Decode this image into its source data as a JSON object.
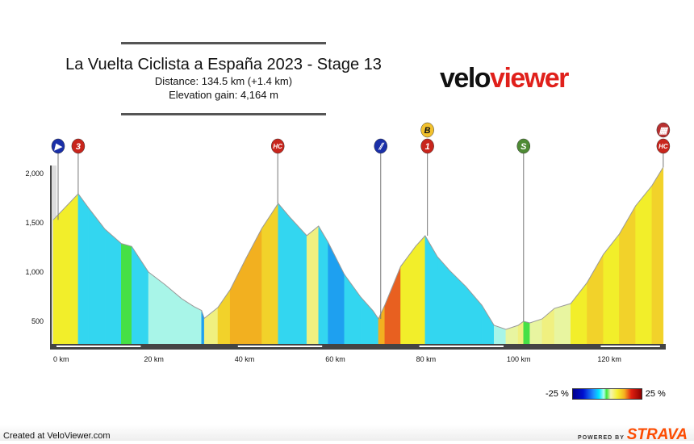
{
  "header": {
    "title": "La Vuelta Ciclista a España 2023 - Stage 13",
    "distance": "Distance: 134.5 km (+1.4 km)",
    "elevation_gain": "Elevation gain: 4,164 m"
  },
  "logo": {
    "part1": "velo",
    "part2": "viewer"
  },
  "footer": {
    "created": "Created at VeloViewer.com",
    "powered": "POWERED BY",
    "strava": "STRAVA"
  },
  "legend": {
    "min": "-25 %",
    "max": "25 %"
  },
  "chart_data": {
    "type": "area",
    "xlabel": "",
    "ylabel": "",
    "xlim": [
      0,
      134.5
    ],
    "ylim": [
      235,
      2100
    ],
    "x_ticks": [
      "0 km",
      "20 km",
      "40 km",
      "60 km",
      "80 km",
      "100 km",
      "120 km"
    ],
    "y_ticks": [
      "2,000",
      "1,500",
      "1,000",
      "500"
    ],
    "x_tick_values": [
      0,
      20,
      40,
      60,
      80,
      100,
      120
    ],
    "y_tick_values": [
      2000,
      1500,
      1000,
      500
    ],
    "points": [
      [
        0,
        1530
      ],
      [
        5.5,
        1795
      ],
      [
        7.8,
        1650
      ],
      [
        11.4,
        1435
      ],
      [
        15,
        1290
      ],
      [
        17.3,
        1260
      ],
      [
        21,
        1000
      ],
      [
        24.7,
        870
      ],
      [
        28.3,
        730
      ],
      [
        31,
        650
      ],
      [
        32.7,
        610
      ],
      [
        33.3,
        530
      ],
      [
        36.3,
        640
      ],
      [
        39,
        820
      ],
      [
        42.5,
        1140
      ],
      [
        46,
        1445
      ],
      [
        49.6,
        1697
      ],
      [
        52.3,
        1550
      ],
      [
        55.9,
        1370
      ],
      [
        58.5,
        1467
      ],
      [
        60.6,
        1303
      ],
      [
        64.2,
        975
      ],
      [
        67.8,
        746
      ],
      [
        70.5,
        607
      ],
      [
        71.7,
        525
      ],
      [
        73.1,
        664
      ],
      [
        76.6,
        1057
      ],
      [
        79.9,
        1262
      ],
      [
        82,
        1369
      ],
      [
        84.7,
        1156
      ],
      [
        87.4,
        1016
      ],
      [
        91,
        852
      ],
      [
        94.5,
        664
      ],
      [
        97.2,
        459
      ],
      [
        99.8,
        418
      ],
      [
        102.5,
        459
      ],
      [
        103.7,
        500
      ],
      [
        105.1,
        484
      ],
      [
        107.8,
        525
      ],
      [
        110.5,
        631
      ],
      [
        114.1,
        680
      ],
      [
        117.7,
        893
      ],
      [
        121.3,
        1180
      ],
      [
        124.8,
        1385
      ],
      [
        128.4,
        1672
      ],
      [
        132,
        1877
      ],
      [
        134.5,
        2066
      ]
    ],
    "markers": [
      {
        "km": 0,
        "label": "▶",
        "type": "start",
        "color": "#1a2fa8"
      },
      {
        "km": 5.5,
        "label": "3",
        "type": "cat-3",
        "color": "#c8251c"
      },
      {
        "km": 49.5,
        "label": "HC",
        "type": "hc",
        "color": "#c8251c"
      },
      {
        "km": 72.2,
        "label": "⫽",
        "type": "feed-zone",
        "color": "#1a2fa8"
      },
      {
        "km": 82.5,
        "label": "1",
        "type": "cat-1",
        "color": "#c8251c",
        "extra": "B",
        "extra_color": "#f2c12e"
      },
      {
        "km": 103.7,
        "label": "S",
        "type": "sprint",
        "color": "#4e8a34"
      },
      {
        "km": 134.5,
        "label": "HC",
        "type": "hc-finish",
        "color": "#c8251c",
        "extra": "▦",
        "extra_color": "#b83030"
      }
    ]
  }
}
